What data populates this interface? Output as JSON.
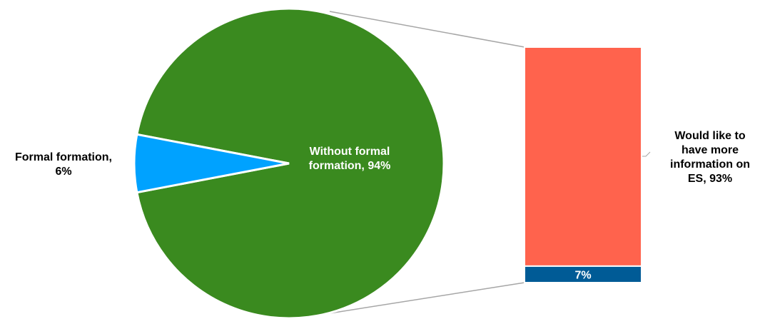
{
  "chart_data": {
    "type": "bar-of-pie",
    "title": "",
    "pie": {
      "slices": [
        {
          "name": "Without formal formation",
          "value": 94,
          "color": "#3a8a1f",
          "label_lines": [
            "Without formal",
            "formation, 94%"
          ]
        },
        {
          "name": "Formal formation",
          "value": 6,
          "color": "#00a2ff",
          "label_lines": [
            "Formal formation,",
            "6%"
          ]
        }
      ]
    },
    "bar": {
      "segments": [
        {
          "name": "Would like to have more information on ES",
          "value": 93,
          "color": "#ff634d",
          "label_lines": [
            "Would like to",
            "have more",
            "information on",
            "ES, 93%"
          ]
        },
        {
          "name": "",
          "value": 7,
          "color": "#005b96",
          "label_lines": [
            "7%"
          ]
        }
      ]
    }
  }
}
